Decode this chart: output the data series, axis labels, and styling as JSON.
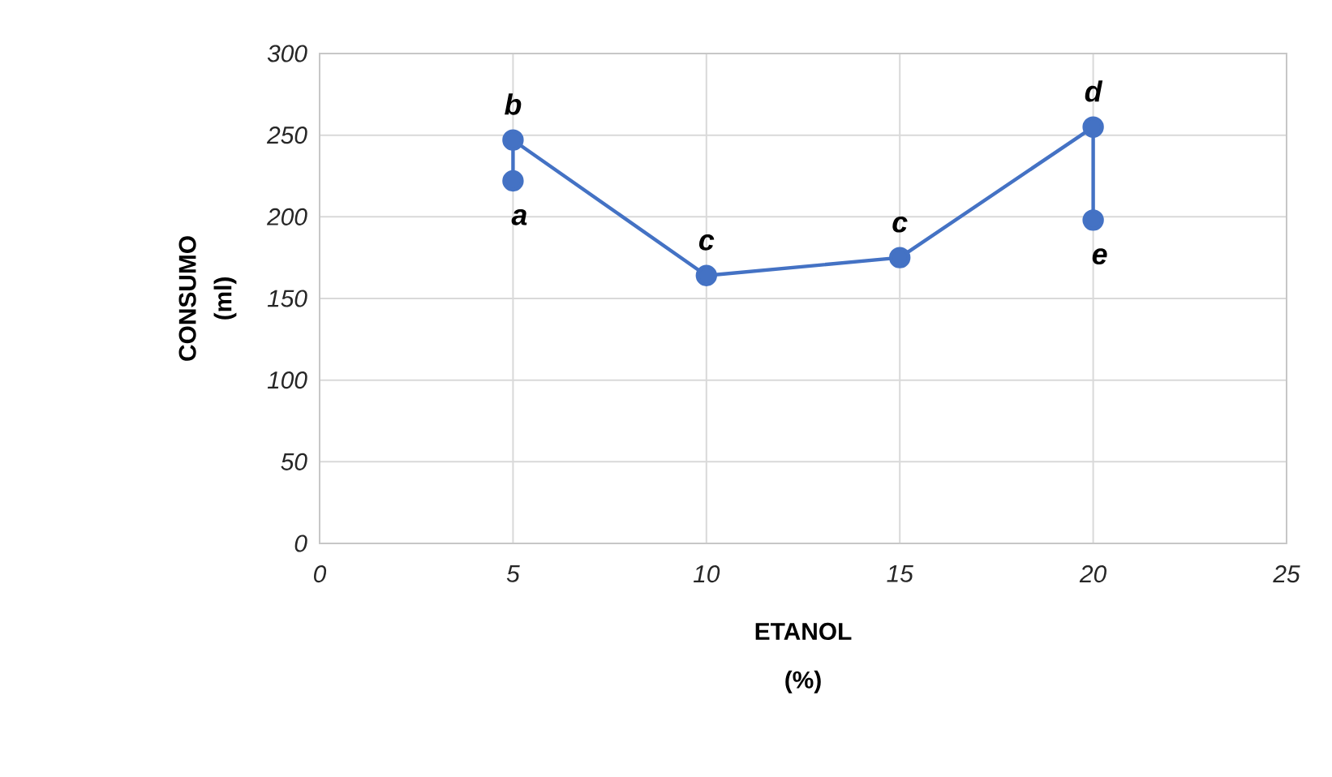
{
  "chart_data": {
    "type": "line",
    "xlabel": "ETANOL (%)",
    "ylabel": "CONSUMO (ml)",
    "x": [
      5,
      5,
      10,
      15,
      20,
      20
    ],
    "values": [
      222,
      247,
      164,
      175,
      255,
      198
    ],
    "color": "#4472c4",
    "marker": "circle",
    "line_style": "solid",
    "grid": true,
    "xlim": [
      0,
      25
    ],
    "xticks": [
      0,
      5,
      10,
      15,
      20,
      25
    ],
    "ylim": [
      0,
      300
    ],
    "yticks": [
      0,
      50,
      100,
      150,
      200,
      250,
      300
    ],
    "annotations": [
      {
        "text": "a",
        "x": 5,
        "y": 222
      },
      {
        "text": "b",
        "x": 5,
        "y": 247
      },
      {
        "text": "c",
        "x": 10,
        "y": 164
      },
      {
        "text": "c",
        "x": 15,
        "y": 175
      },
      {
        "text": "d",
        "x": 20,
        "y": 255
      },
      {
        "text": "e",
        "x": 20,
        "y": 198
      }
    ]
  }
}
